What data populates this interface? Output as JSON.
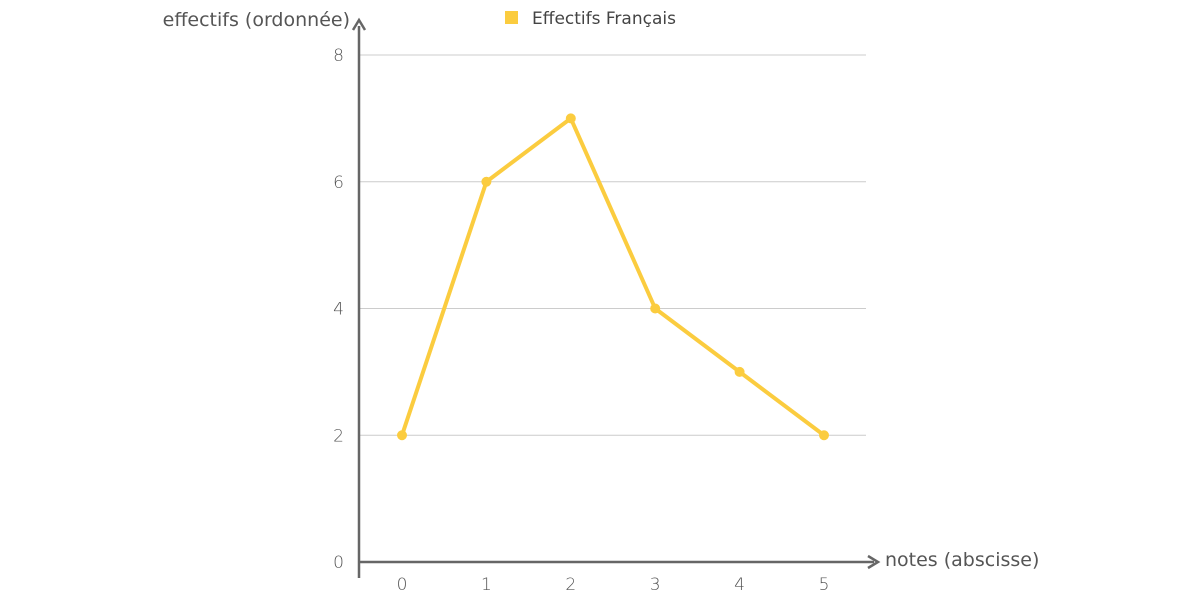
{
  "chart_data": {
    "type": "line",
    "x": [
      0,
      1,
      2,
      3,
      4,
      5
    ],
    "x_tick_labels": [
      "0",
      "1",
      "2",
      "3",
      "4",
      "5"
    ],
    "y_ticks": [
      0,
      2,
      4,
      6,
      8
    ],
    "y_tick_labels": [
      "0",
      "2",
      "4",
      "6",
      "8"
    ],
    "ylim": [
      0,
      8
    ],
    "xlabel": "notes (abscisse)",
    "ylabel": "effectifs (ordonnée)",
    "grid": true,
    "legend_position": "top",
    "series": [
      {
        "name": "Effectifs Français",
        "values": [
          2,
          6,
          7,
          4,
          3,
          2
        ],
        "color": "#fbcc3f"
      }
    ],
    "axis_color": "#666666",
    "grid_color": "#cccccc"
  }
}
